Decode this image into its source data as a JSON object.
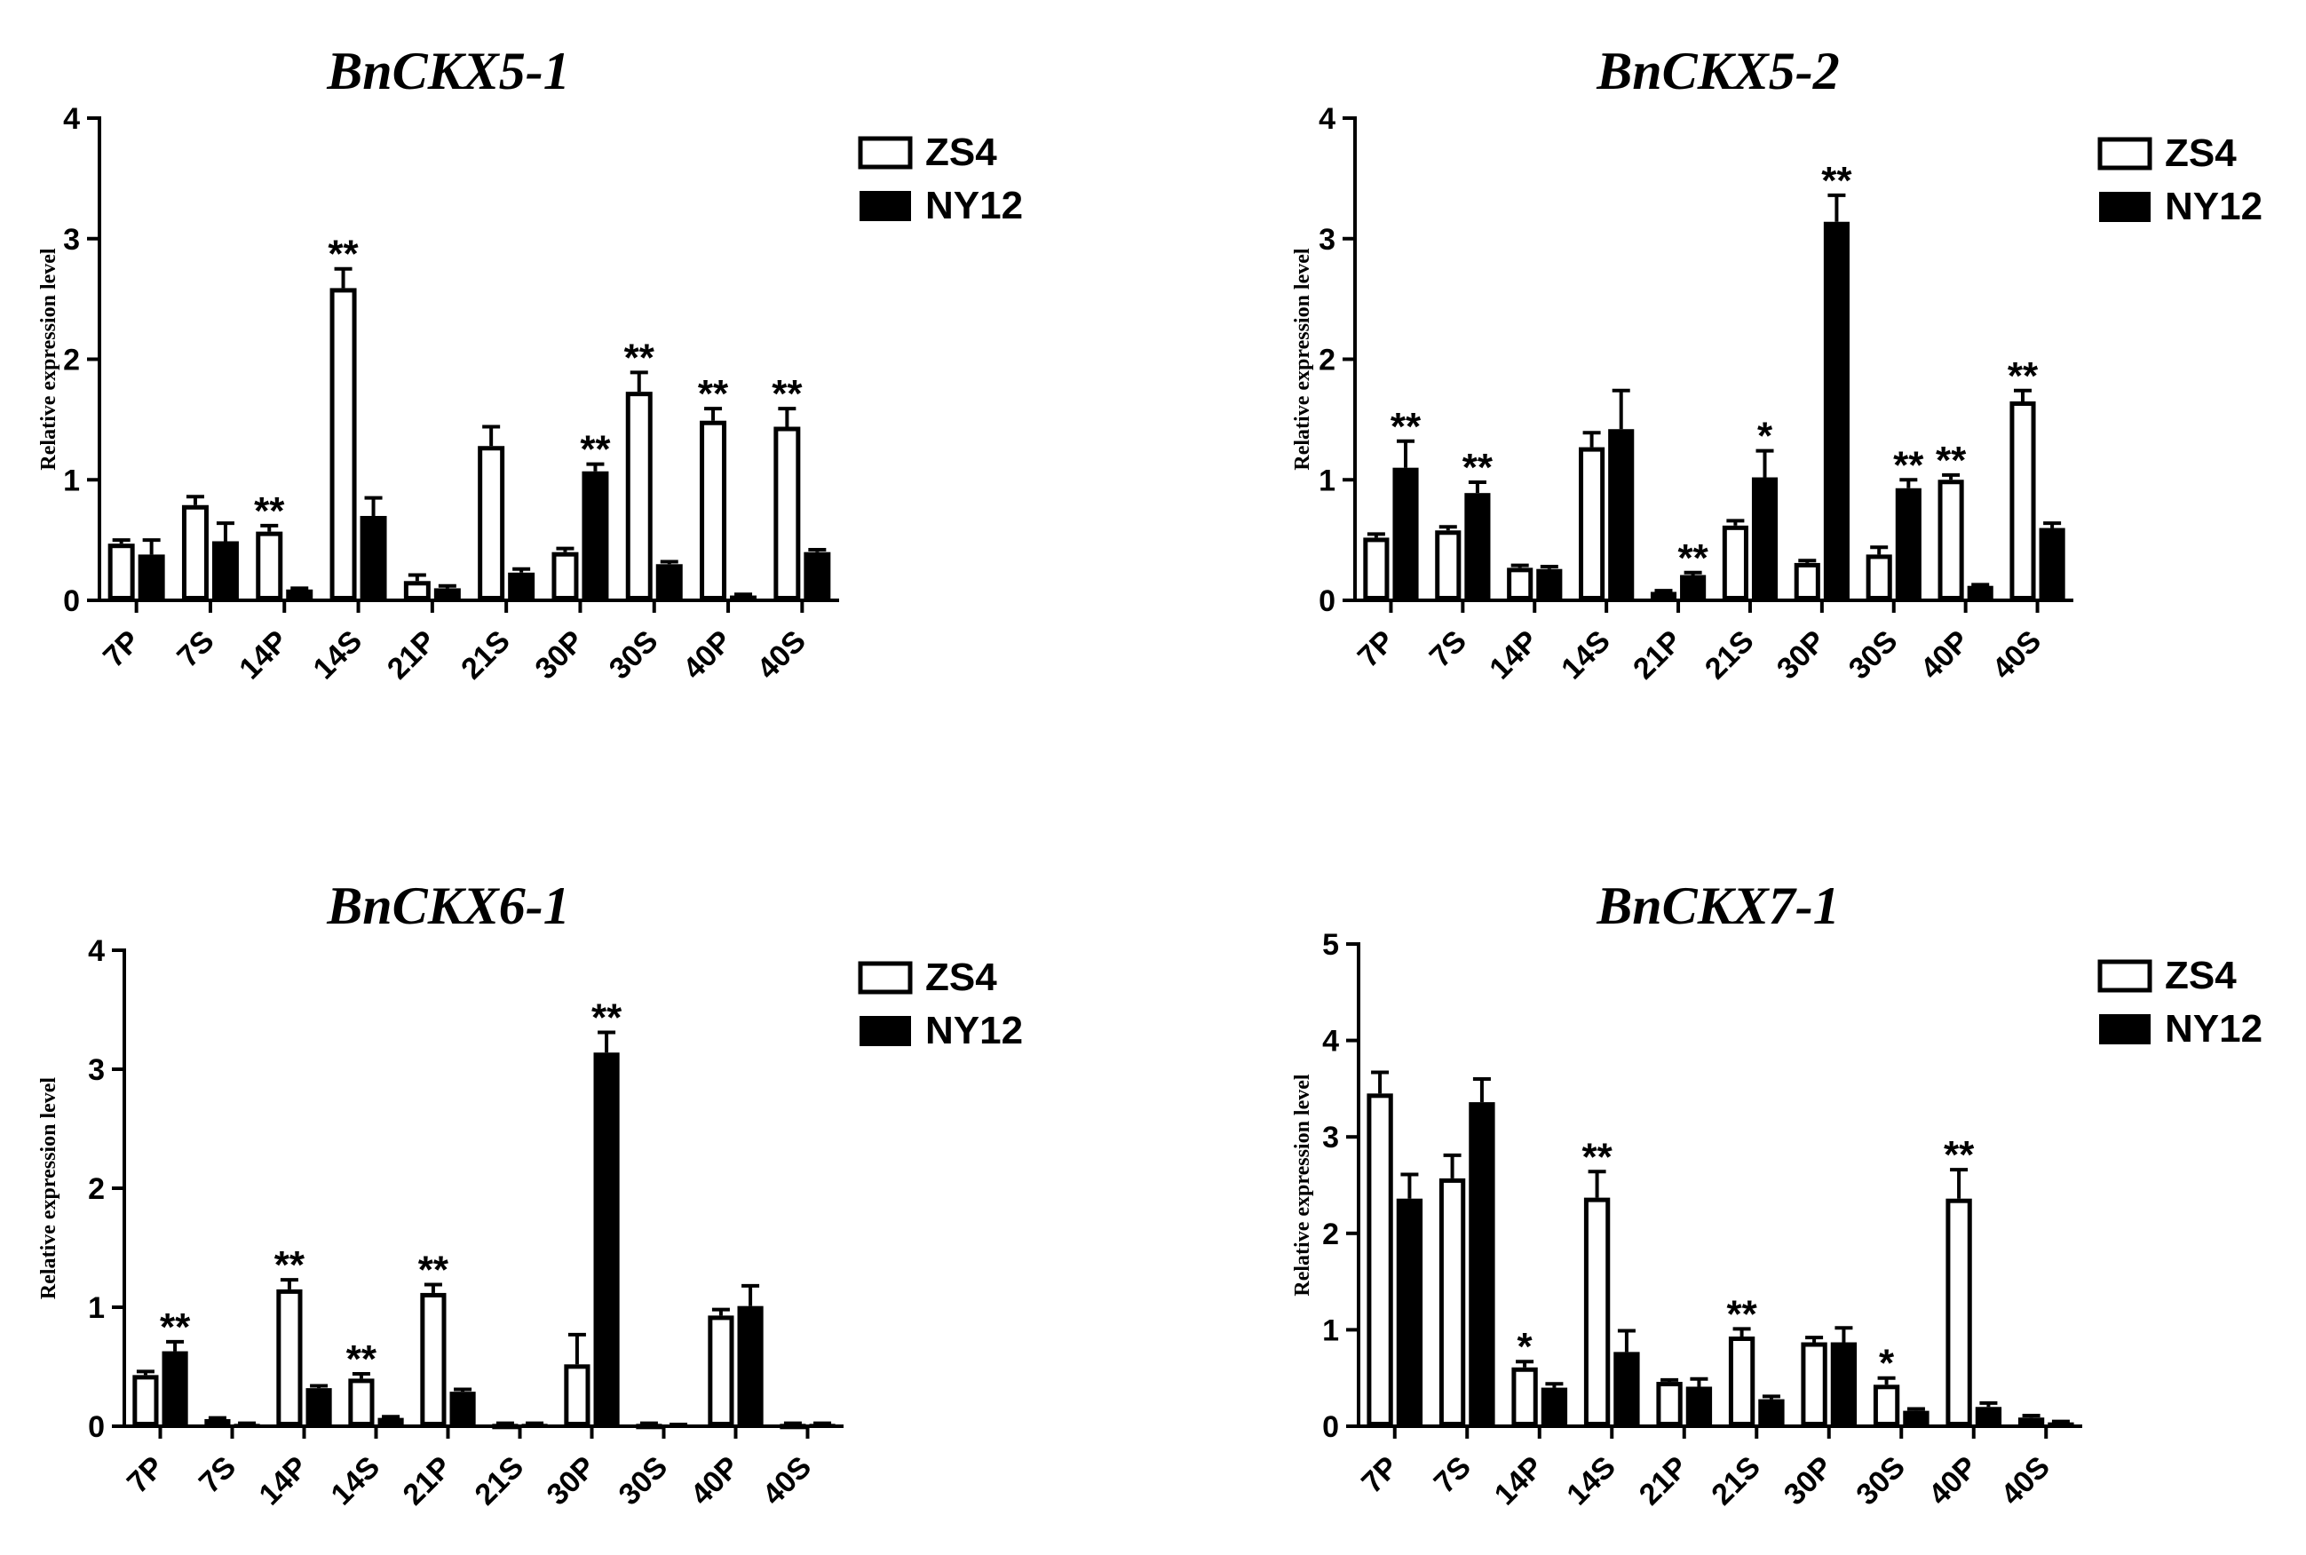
{
  "chart_data": [
    {
      "type": "bar",
      "title": "BnCKX5-1",
      "ylabel": "Relative expression level",
      "xlabel": "",
      "ylim": [
        0,
        4
      ],
      "yticks": [
        "0",
        "1",
        "2",
        "3",
        "4"
      ],
      "categories": [
        "7P",
        "7S",
        "14P",
        "14S",
        "21P",
        "21S",
        "30P",
        "30S",
        "40P",
        "40S"
      ],
      "legend_position": "top-right",
      "series": [
        {
          "name": "ZS4",
          "style": "open",
          "values": [
            0.47,
            0.79,
            0.57,
            2.59,
            0.16,
            1.28,
            0.4,
            1.73,
            1.49,
            1.44
          ],
          "errors": [
            0.03,
            0.07,
            0.05,
            0.16,
            0.05,
            0.16,
            0.03,
            0.16,
            0.1,
            0.15
          ]
        },
        {
          "name": "NY12",
          "style": "filled",
          "values": [
            0.38,
            0.49,
            0.09,
            0.7,
            0.1,
            0.23,
            1.07,
            0.3,
            0.04,
            0.4
          ],
          "errors": [
            0.12,
            0.15,
            0.01,
            0.15,
            0.02,
            0.03,
            0.06,
            0.02,
            0.01,
            0.02
          ]
        }
      ],
      "annotations": [
        {
          "category": "14P",
          "series": "ZS4",
          "text": "**"
        },
        {
          "category": "14S",
          "series": "ZS4",
          "text": "**"
        },
        {
          "category": "30P",
          "series": "NY12",
          "text": "**"
        },
        {
          "category": "30S",
          "series": "ZS4",
          "text": "**"
        },
        {
          "category": "40P",
          "series": "ZS4",
          "text": "**"
        },
        {
          "category": "40S",
          "series": "ZS4",
          "text": "**"
        }
      ]
    },
    {
      "type": "bar",
      "title": "BnCKX5-2",
      "ylabel": "Relative expression level",
      "xlabel": "",
      "ylim": [
        0,
        4
      ],
      "yticks": [
        "0",
        "1",
        "2",
        "3",
        "4"
      ],
      "categories": [
        "7P",
        "7S",
        "14P",
        "14S",
        "21P",
        "21S",
        "30P",
        "30S",
        "40P",
        "40S"
      ],
      "legend_position": "top-right",
      "series": [
        {
          "name": "ZS4",
          "style": "open",
          "values": [
            0.52,
            0.58,
            0.27,
            1.27,
            0.07,
            0.62,
            0.31,
            0.38,
            1.0,
            1.65
          ],
          "errors": [
            0.03,
            0.03,
            0.02,
            0.12,
            0.01,
            0.04,
            0.02,
            0.06,
            0.04,
            0.09
          ]
        },
        {
          "name": "NY12",
          "style": "filled",
          "values": [
            1.1,
            0.89,
            0.26,
            1.42,
            0.21,
            1.02,
            3.14,
            0.93,
            0.12,
            0.6
          ],
          "errors": [
            0.22,
            0.09,
            0.02,
            0.32,
            0.02,
            0.22,
            0.22,
            0.07,
            0.01,
            0.04
          ]
        }
      ],
      "annotations": [
        {
          "category": "7P",
          "series": "NY12",
          "text": "**"
        },
        {
          "category": "7S",
          "series": "NY12",
          "text": "**"
        },
        {
          "category": "21P",
          "series": "NY12",
          "text": "**"
        },
        {
          "category": "21S",
          "series": "NY12",
          "text": "*"
        },
        {
          "category": "30P",
          "series": "NY12",
          "text": "**"
        },
        {
          "category": "30S",
          "series": "NY12",
          "text": "**"
        },
        {
          "category": "40P",
          "series": "ZS4",
          "text": "**"
        },
        {
          "category": "40S",
          "series": "ZS4",
          "text": "**"
        }
      ]
    },
    {
      "type": "bar",
      "title": "BnCKX6-1",
      "ylabel": "Relative expression level",
      "xlabel": "",
      "ylim": [
        0,
        4
      ],
      "yticks": [
        "0",
        "1",
        "2",
        "3",
        "4"
      ],
      "categories": [
        "7P",
        "7S",
        "14P",
        "14S",
        "21P",
        "21S",
        "30P",
        "30S",
        "40P",
        "40S"
      ],
      "legend_position": "top-right",
      "series": [
        {
          "name": "ZS4",
          "style": "open",
          "values": [
            0.43,
            0.06,
            1.15,
            0.4,
            1.12,
            0.02,
            0.52,
            0.02,
            0.93,
            0.02
          ],
          "errors": [
            0.03,
            0.01,
            0.08,
            0.04,
            0.07,
            0.005,
            0.25,
            0.005,
            0.05,
            0.005
          ]
        },
        {
          "name": "NY12",
          "style": "filled",
          "values": [
            0.63,
            0.02,
            0.32,
            0.07,
            0.29,
            0.02,
            3.14,
            0.01,
            1.01,
            0.02
          ],
          "errors": [
            0.08,
            0.005,
            0.02,
            0.01,
            0.02,
            0.005,
            0.17,
            0.005,
            0.17,
            0.005
          ]
        }
      ],
      "annotations": [
        {
          "category": "7P",
          "series": "NY12",
          "text": "**"
        },
        {
          "category": "14P",
          "series": "ZS4",
          "text": "**"
        },
        {
          "category": "14S",
          "series": "ZS4",
          "text": "**"
        },
        {
          "category": "21P",
          "series": "ZS4",
          "text": "**"
        },
        {
          "category": "30P",
          "series": "NY12",
          "text": "**"
        }
      ]
    },
    {
      "type": "bar",
      "title": "BnCKX7-1",
      "ylabel": "Relative expression level",
      "xlabel": "",
      "ylim": [
        0,
        5
      ],
      "yticks": [
        "0",
        "1",
        "2",
        "3",
        "4",
        "5"
      ],
      "categories": [
        "7P",
        "7S",
        "14P",
        "14S",
        "21P",
        "21S",
        "30P",
        "30S",
        "40P",
        "40S"
      ],
      "legend_position": "top-right",
      "series": [
        {
          "name": "ZS4",
          "style": "open",
          "values": [
            3.45,
            2.57,
            0.61,
            2.37,
            0.46,
            0.93,
            0.87,
            0.43,
            2.36,
            0.09
          ],
          "errors": [
            0.22,
            0.24,
            0.06,
            0.27,
            0.02,
            0.08,
            0.05,
            0.07,
            0.3,
            0.02
          ]
        },
        {
          "name": "NY12",
          "style": "filled",
          "values": [
            2.36,
            3.36,
            0.4,
            0.77,
            0.41,
            0.28,
            0.87,
            0.16,
            0.2,
            0.04
          ],
          "errors": [
            0.25,
            0.24,
            0.04,
            0.22,
            0.08,
            0.03,
            0.15,
            0.02,
            0.04,
            0.01
          ]
        }
      ],
      "annotations": [
        {
          "category": "14P",
          "series": "ZS4",
          "text": "*"
        },
        {
          "category": "14S",
          "series": "ZS4",
          "text": "**"
        },
        {
          "category": "21S",
          "series": "ZS4",
          "text": "**"
        },
        {
          "category": "30S",
          "series": "ZS4",
          "text": "*"
        },
        {
          "category": "40P",
          "series": "ZS4",
          "text": "**"
        }
      ]
    }
  ]
}
